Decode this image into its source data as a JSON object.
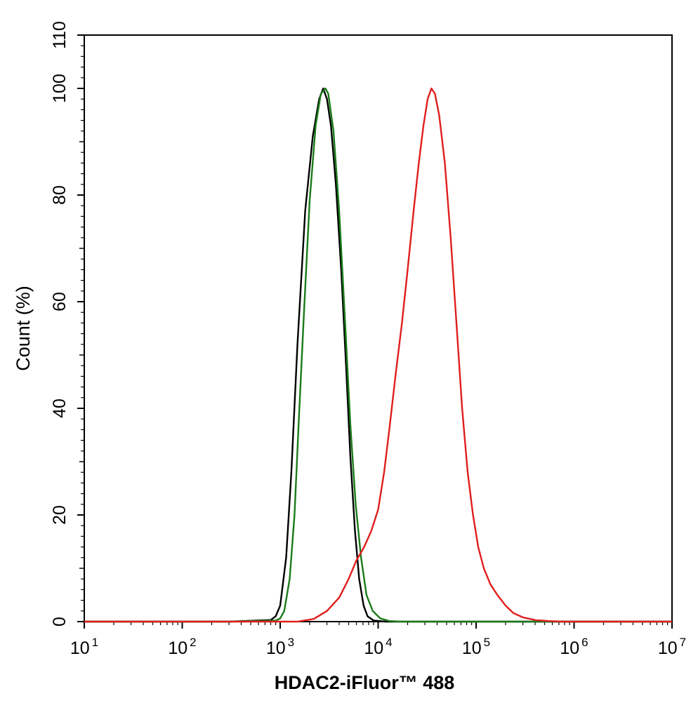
{
  "chart_data": {
    "type": "line",
    "xlabel": "HDAC2-iFluor™ 488",
    "ylabel": "Count  (%)",
    "xscale": "log",
    "xlim": [
      10,
      10000000
    ],
    "ylim": [
      0,
      110
    ],
    "grid": false,
    "x_ticks": [
      {
        "value": 10,
        "base": "10",
        "exp": "1"
      },
      {
        "value": 100,
        "base": "10",
        "exp": "2"
      },
      {
        "value": 1000,
        "base": "10",
        "exp": "3"
      },
      {
        "value": 10000,
        "base": "10",
        "exp": "4"
      },
      {
        "value": 100000,
        "base": "10",
        "exp": "5"
      },
      {
        "value": 1000000,
        "base": "10",
        "exp": "6"
      },
      {
        "value": 10000000,
        "base": "10",
        "exp": "7"
      }
    ],
    "y_ticks": [
      {
        "value": 0,
        "label": "0"
      },
      {
        "value": 20,
        "label": "20"
      },
      {
        "value": 40,
        "label": "40"
      },
      {
        "value": 60,
        "label": "60"
      },
      {
        "value": 80,
        "label": "80"
      },
      {
        "value": 100,
        "label": "100"
      },
      {
        "value": 110,
        "label": "110"
      }
    ],
    "series": [
      {
        "color": "#000000",
        "points": [
          [
            10,
            0
          ],
          [
            300,
            0
          ],
          [
            800,
            0.3
          ],
          [
            900,
            1
          ],
          [
            1000,
            3
          ],
          [
            1150,
            12
          ],
          [
            1300,
            28
          ],
          [
            1500,
            52
          ],
          [
            1800,
            77
          ],
          [
            2150,
            91
          ],
          [
            2500,
            98
          ],
          [
            2750,
            100
          ],
          [
            3000,
            98
          ],
          [
            3300,
            93
          ],
          [
            3700,
            82
          ],
          [
            4200,
            66
          ],
          [
            4700,
            48
          ],
          [
            5200,
            31
          ],
          [
            5800,
            17
          ],
          [
            6400,
            8
          ],
          [
            7100,
            3
          ],
          [
            7800,
            1
          ],
          [
            9000,
            0.2
          ],
          [
            12000,
            0
          ],
          [
            10000000,
            0
          ]
        ]
      },
      {
        "color": "#1a7a1a",
        "points": [
          [
            10,
            0
          ],
          [
            300,
            0
          ],
          [
            900,
            0.2
          ],
          [
            1000,
            0.6
          ],
          [
            1100,
            2
          ],
          [
            1250,
            8
          ],
          [
            1400,
            20
          ],
          [
            1550,
            38
          ],
          [
            1750,
            58
          ],
          [
            2000,
            79
          ],
          [
            2300,
            93
          ],
          [
            2600,
            99
          ],
          [
            2900,
            100
          ],
          [
            3100,
            99
          ],
          [
            3500,
            92
          ],
          [
            4000,
            77
          ],
          [
            4600,
            56
          ],
          [
            5200,
            37
          ],
          [
            5900,
            22
          ],
          [
            6700,
            12
          ],
          [
            7600,
            5
          ],
          [
            8800,
            2
          ],
          [
            10500,
            0.6
          ],
          [
            13000,
            0.1
          ],
          [
            17000,
            0
          ],
          [
            10000000,
            0
          ]
        ]
      },
      {
        "color": "#e01e1e",
        "points": [
          [
            10,
            0
          ],
          [
            1500,
            0
          ],
          [
            2200,
            0.5
          ],
          [
            3000,
            2
          ],
          [
            4000,
            4.5
          ],
          [
            5000,
            8
          ],
          [
            6000,
            11.5
          ],
          [
            7200,
            14
          ],
          [
            8500,
            17
          ],
          [
            10000,
            21
          ],
          [
            11500,
            28
          ],
          [
            13000,
            36
          ],
          [
            15000,
            46
          ],
          [
            17500,
            56
          ],
          [
            20000,
            66
          ],
          [
            23000,
            77
          ],
          [
            26000,
            86
          ],
          [
            29000,
            93
          ],
          [
            32000,
            98
          ],
          [
            35000,
            100
          ],
          [
            38000,
            99
          ],
          [
            42000,
            95
          ],
          [
            48000,
            86
          ],
          [
            55000,
            72
          ],
          [
            63000,
            56
          ],
          [
            72000,
            40
          ],
          [
            82000,
            28
          ],
          [
            93000,
            20
          ],
          [
            105000,
            14
          ],
          [
            120000,
            10
          ],
          [
            140000,
            7
          ],
          [
            165000,
            5
          ],
          [
            200000,
            3
          ],
          [
            240000,
            1.6
          ],
          [
            300000,
            0.8
          ],
          [
            400000,
            0.3
          ],
          [
            550000,
            0.1
          ],
          [
            800000,
            0
          ],
          [
            10000000,
            0
          ]
        ]
      }
    ]
  }
}
